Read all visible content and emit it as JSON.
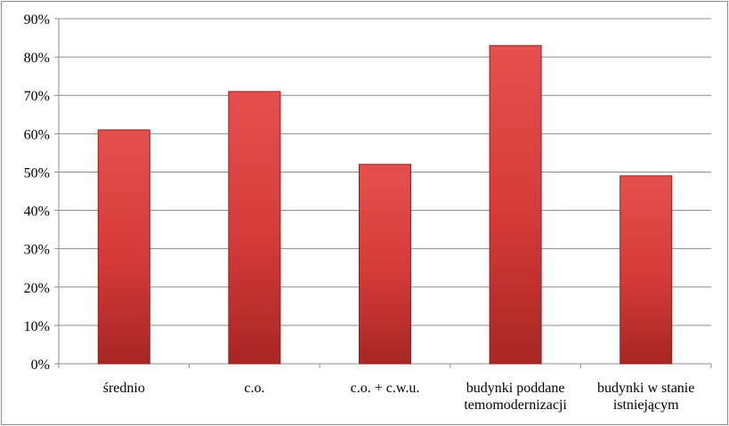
{
  "chart_data": {
    "type": "bar",
    "categories": [
      [
        "średnio"
      ],
      [
        "c.o."
      ],
      [
        "c.o. + c.w.u."
      ],
      [
        "budynki poddane",
        "temomodernizacji"
      ],
      [
        "budynki w stanie",
        "istniejącym"
      ]
    ],
    "values": [
      61,
      71,
      52,
      83,
      49
    ],
    "ylim": [
      0,
      90
    ],
    "y_tick_step": 10,
    "y_tick_format": "percent",
    "grid": true,
    "title": "",
    "xlabel": "",
    "ylabel": "",
    "colors": {
      "bar_fill_top": "#e5504d",
      "bar_fill_mid": "#d43a38",
      "bar_fill_bottom": "#a82623",
      "bar_stroke": "#8e1f1c",
      "grid": "#8c8c8c",
      "axis": "#8c8c8c"
    }
  }
}
